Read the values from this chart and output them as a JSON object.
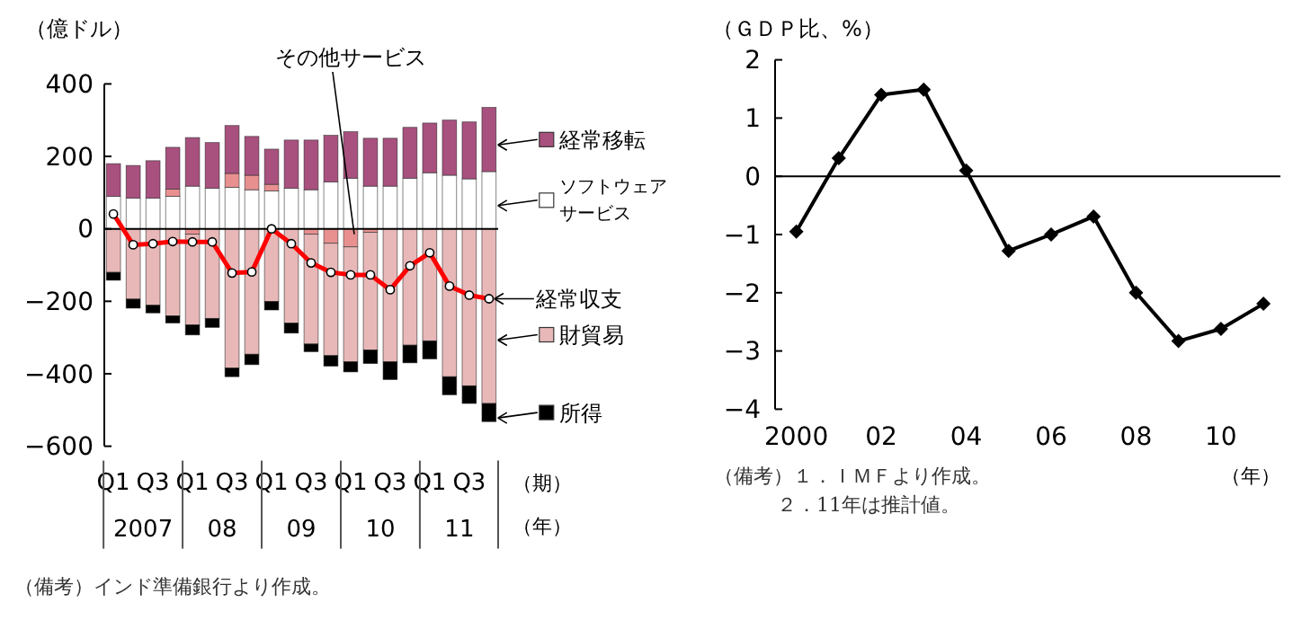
{
  "chart_data": [
    {
      "type": "bar",
      "stacked": true,
      "ylabel": "（億ドル）",
      "xlabel": "（期）",
      "legend": "right",
      "marker": "circle",
      "categories": [
        "Q1",
        null,
        "Q3",
        null,
        "Q1",
        null,
        "Q3",
        null,
        "Q1",
        null,
        "Q3",
        null,
        "Q1",
        null,
        "Q3",
        null,
        "Q1",
        null,
        "Q3",
        null
      ],
      "series": [
        {
          "name": "ソフトウェアサービス",
          "color": "#ffffff",
          "values": [
            90,
            85,
            85,
            90,
            118,
            112,
            115,
            108,
            105,
            112,
            108,
            130,
            140,
            118,
            118,
            140,
            155,
            148,
            138,
            158
          ]
        },
        {
          "name": "その他サービス",
          "color": "#e89090",
          "values": [
            0,
            0,
            0,
            20,
            -15,
            0,
            38,
            40,
            18,
            0,
            -15,
            -40,
            -50,
            -10,
            0,
            null,
            0,
            0,
            0,
            0
          ]
        },
        {
          "name": "経常移転",
          "color": "#a8507e",
          "values": [
            90,
            90,
            103,
            115,
            134,
            126,
            132,
            107,
            97,
            133,
            137,
            128,
            128,
            132,
            132,
            140,
            137,
            152,
            157,
            177
          ]
        },
        {
          "name": "財貿易",
          "color": "#e8b8b8",
          "values": [
            -120,
            -194,
            -211,
            -240,
            -250,
            -247,
            -384,
            -346,
            -200,
            -260,
            -303,
            -310,
            -317,
            -324,
            -367,
            -321,
            -309,
            -408,
            -433,
            -482
          ]
        },
        {
          "name": "所得",
          "color": "#000000",
          "values": [
            -22,
            -25,
            -21,
            -20,
            -28,
            -25,
            -24,
            -29,
            -24,
            -28,
            -21,
            -29,
            -28,
            -38,
            -49,
            -49,
            -50,
            -50,
            -49,
            -50
          ]
        },
        {
          "name": "経常収支",
          "type": "line",
          "color": "#ff0000",
          "values": [
            41,
            -44,
            -41,
            -35,
            -36,
            -36,
            -122,
            -119,
            0,
            -41,
            -94,
            -120,
            -127,
            -127,
            -168,
            -102,
            -66,
            -158,
            -183,
            -193
          ]
        }
      ],
      "ylim": [
        -600,
        400
      ],
      "yticks": [
        -600,
        -400,
        -200,
        0,
        200,
        400
      ],
      "annotations": [
        "（年）",
        "2007",
        "08",
        "09",
        "10",
        "11",
        "（備考）インド準備銀行より作成。"
      ]
    },
    {
      "type": "line",
      "ylabel": "（ＧＤＰ比、%）",
      "xlabel": "（年）",
      "marker": "diamond",
      "x": [
        2000,
        2001,
        2002,
        2003,
        2004,
        2005,
        2006,
        2007,
        2008,
        2009,
        2010,
        2011
      ],
      "series": [
        {
          "color": "#000000",
          "values": [
            -0.95,
            0.31,
            1.4,
            1.49,
            0.1,
            -1.28,
            -1.0,
            -0.69,
            -2.0,
            -2.83,
            -2.62,
            -2.19
          ]
        }
      ],
      "xlim": [
        1999.5,
        2011.4
      ],
      "xticks": [
        {
          "value": 2000,
          "label": "2000"
        },
        {
          "value": 2002,
          "label": "02"
        },
        {
          "value": 2004,
          "label": "04"
        },
        {
          "value": 2006,
          "label": "06"
        },
        {
          "value": 2008,
          "label": "08"
        },
        {
          "value": 2010,
          "label": "10"
        }
      ],
      "ylim": [
        -4,
        2
      ],
      "yticks": [
        -4,
        -3,
        -2,
        -1,
        0,
        1,
        2
      ],
      "ref_lines": [
        {
          "axis": "y",
          "value": 0
        }
      ],
      "annotations": [
        "（備考）１．ＩＭＦより作成。",
        "２．11年は推計値。"
      ]
    }
  ]
}
